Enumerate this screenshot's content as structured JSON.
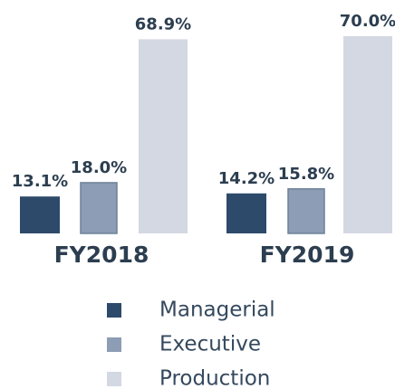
{
  "chart_data": {
    "type": "bar",
    "categories": [
      "FY2018",
      "FY2019"
    ],
    "series": [
      {
        "name": "Managerial",
        "color": "#2d4a6b",
        "values": [
          13.1,
          14.2
        ],
        "value_labels": [
          "13.1%",
          "14.2%"
        ]
      },
      {
        "name": "Executive",
        "color": "#8c9db5",
        "values": [
          18.0,
          15.8
        ],
        "value_labels": [
          "18.0%",
          "15.8%"
        ]
      },
      {
        "name": "Production",
        "color": "#d3d8e2",
        "values": [
          68.9,
          70.0
        ],
        "value_labels": [
          "68.9%",
          "70.0%"
        ]
      }
    ]
  }
}
